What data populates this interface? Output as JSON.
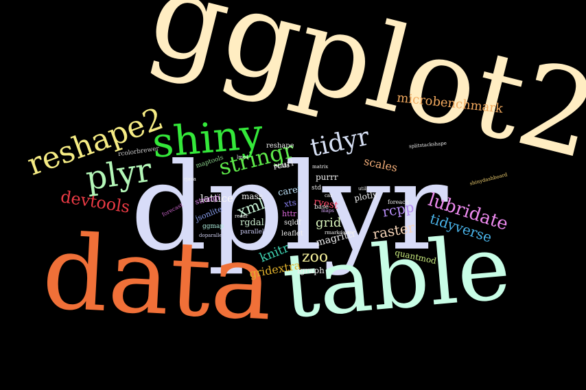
{
  "words": [
    {
      "id": "ggplot2",
      "text": "ggplot2",
      "color": "#ffedc2"
    },
    {
      "id": "dplyr",
      "text": "dplyr",
      "color": "#d8dcf8"
    },
    {
      "id": "data",
      "text": "data",
      "color": "#f07038"
    },
    {
      "id": "table",
      "text": "table",
      "color": "#c8fde6"
    },
    {
      "id": "shiny",
      "text": "shiny",
      "color": "#34e83a"
    },
    {
      "id": "reshape2",
      "text": "reshape2",
      "color": "#f6ec84"
    },
    {
      "id": "plyr",
      "text": "plyr",
      "color": "#b4f7b8"
    },
    {
      "id": "tidyr",
      "text": "tidyr",
      "color": "#d6dff3"
    },
    {
      "id": "stringr",
      "text": "stringr",
      "color": "#5eea4a"
    },
    {
      "id": "microbenchmark",
      "text": "microbenchmark",
      "color": "#f2a95e"
    },
    {
      "id": "devtools",
      "text": "devtools",
      "color": "#ea3a44"
    },
    {
      "id": "lubridate",
      "text": "lubridate",
      "color": "#ee8af0"
    },
    {
      "id": "tidyverse",
      "text": "tidyverse",
      "color": "#4ab4ea"
    },
    {
      "id": "raster",
      "text": "raster",
      "color": "#f7d5b8"
    },
    {
      "id": "rcpp",
      "text": "rcpp",
      "color": "#b38af0"
    },
    {
      "id": "xml",
      "text": "xml",
      "color": "#c8f3d6"
    },
    {
      "id": "zoo",
      "text": "zoo",
      "color": "#f4ef9a"
    },
    {
      "id": "knitr",
      "text": "knitr",
      "color": "#3ed1b0"
    },
    {
      "id": "grid",
      "text": "grid",
      "color": "#d9f4bd"
    },
    {
      "id": "scales",
      "text": "scales",
      "color": "#f2ad78"
    },
    {
      "id": "gridextra",
      "text": "gridextra",
      "color": "#e2b22c"
    },
    {
      "id": "igraph",
      "text": "igraph",
      "color": "#f0f0f0"
    },
    {
      "id": "quantmod",
      "text": "quantmod",
      "color": "#c8ea7e"
    },
    {
      "id": "lattice",
      "text": "lattice",
      "color": "#f7f7f7"
    },
    {
      "id": "magrittr",
      "text": "magrittr",
      "color": "#f0f0f0"
    },
    {
      "id": "rvest",
      "text": "rvest",
      "color": "#ff4a6a"
    },
    {
      "id": "rgdal",
      "text": "rgdal",
      "color": "#c8eacc"
    },
    {
      "id": "caret",
      "text": "caret",
      "color": "#bce0f7"
    },
    {
      "id": "purrr",
      "text": "purrr",
      "color": "#f0f0f0"
    },
    {
      "id": "mass",
      "text": "mass",
      "color": "#f0f0f0"
    },
    {
      "id": "rcurl",
      "text": "rcurl",
      "color": "#f0f0f0"
    },
    {
      "id": "plotly",
      "text": "plotly",
      "color": "#f0f0f0"
    },
    {
      "id": "httr",
      "text": "httr",
      "color": "#e06ae0"
    },
    {
      "id": "sqldf",
      "text": "sqldf",
      "color": "#f0f0f0"
    },
    {
      "id": "xts",
      "text": "xts",
      "color": "#8a80f0"
    },
    {
      "id": "stringi",
      "text": "stringi",
      "color": "#e08af0"
    },
    {
      "id": "jsonlite",
      "text": "jsonlite",
      "color": "#8aa0f0"
    },
    {
      "id": "leaflet",
      "text": "leaflet",
      "color": "#f0f0f0"
    },
    {
      "id": "parallel",
      "text": "parallel",
      "color": "#c8c8f0"
    },
    {
      "id": "ggmap",
      "text": "ggmap",
      "color": "#b0f0e0"
    },
    {
      "id": "maptools",
      "text": "maptools",
      "color": "#8ad08a"
    },
    {
      "id": "rcolorbrewer",
      "text": "rcolorbrewer",
      "color": "#d0d0d0"
    },
    {
      "id": "reshape",
      "text": "reshape",
      "color": "#f0f0f0"
    },
    {
      "id": "stats",
      "text": "stats",
      "color": "#f0f0f0"
    },
    {
      "id": "forecast",
      "text": "forecast",
      "color": "#c060c0"
    },
    {
      "id": "base",
      "text": "base",
      "color": "#f0f0f0"
    },
    {
      "id": "std",
      "text": "std",
      "color": "#f0f0f0"
    },
    {
      "id": "foreach",
      "text": "foreach",
      "color": "#f0f0f0"
    },
    {
      "id": "shinydashboard",
      "text": "shinydashboard",
      "color": "#f0d070"
    },
    {
      "id": "rmarkdown",
      "text": "rmarkdown",
      "color": "#f0f0f0"
    },
    {
      "id": "doparallel",
      "text": "doparallel",
      "color": "#d0d0f0"
    },
    {
      "id": "matrix",
      "text": "matrix",
      "color": "#f0f0f0"
    },
    {
      "id": "maps",
      "text": "maps",
      "color": "#d0a0f0"
    },
    {
      "id": "readr",
      "text": "readr",
      "color": "#f0f0f0"
    },
    {
      "id": "lme4",
      "text": "lme4",
      "color": "#f0f0f0"
    },
    {
      "id": "rjava",
      "text": "rjava",
      "color": "#f0f0f0"
    },
    {
      "id": "utils",
      "text": "utils",
      "color": "#f0f0f0"
    },
    {
      "id": "car",
      "text": "car",
      "color": "#f0f0f0"
    },
    {
      "id": "splitstackshape",
      "text": "splitstackshape",
      "color": "#f0f0f0"
    }
  ]
}
